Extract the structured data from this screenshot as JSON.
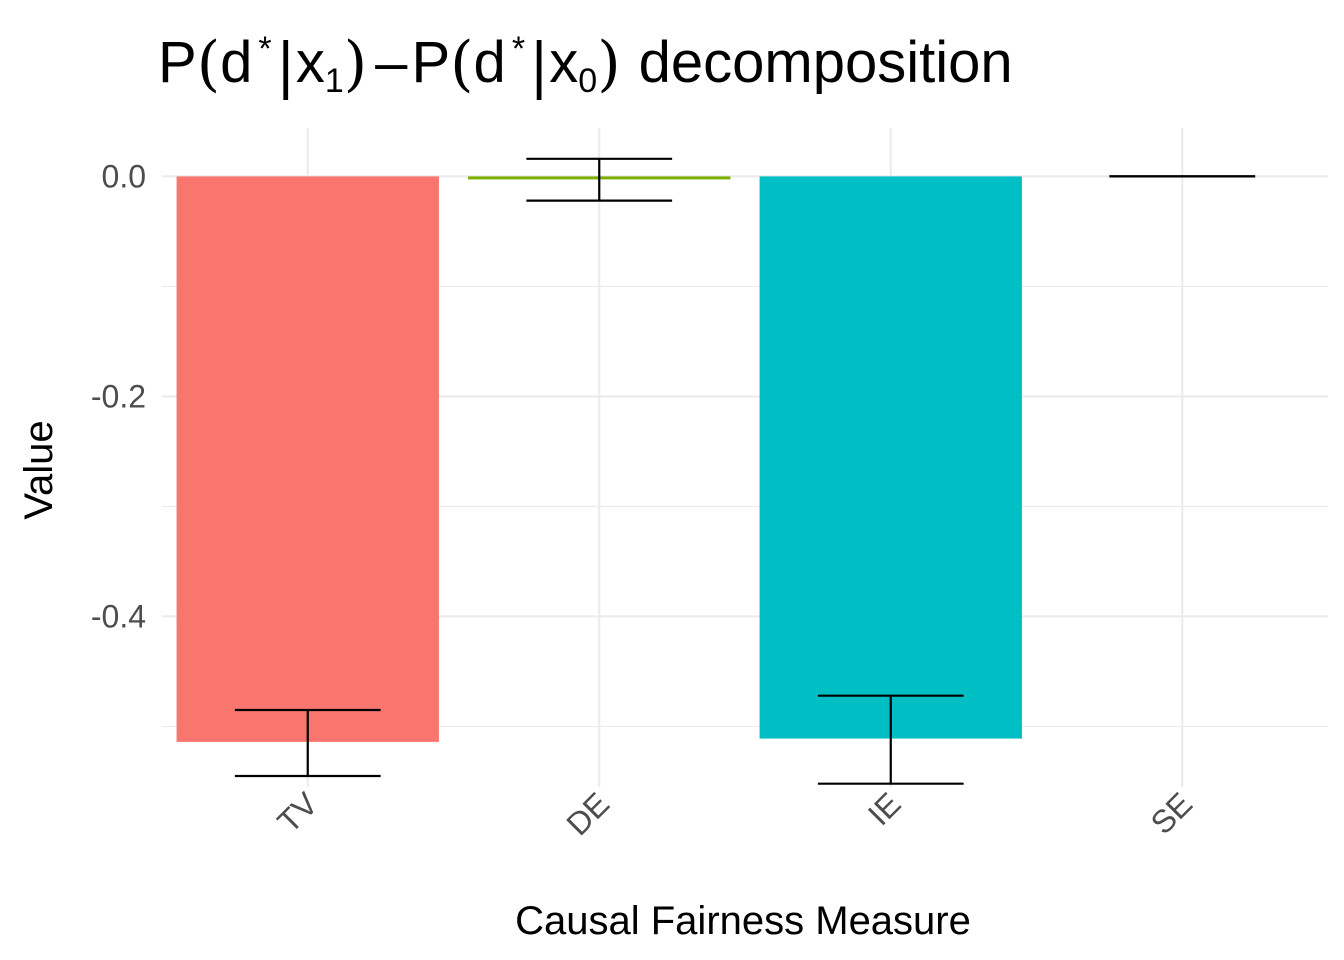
{
  "chart_data": {
    "type": "bar",
    "title_parts": {
      "p1": "P",
      "open1": "(",
      "d1": "d",
      "star1": "*",
      "bar1": "|",
      "x1": "x",
      "sub1": "1",
      "close1": ")",
      "minus": "–",
      "p2": "P",
      "open2": "(",
      "d2": "d",
      "star2": "*",
      "bar2": "|",
      "x2": "x",
      "sub2": "0",
      "close2": ")",
      "rest": "decomposition"
    },
    "xlabel": "Causal Fairness Measure",
    "ylabel": "Value",
    "categories": [
      "TV",
      "DE",
      "IE",
      "SE"
    ],
    "values": [
      -0.514,
      -0.002,
      -0.511,
      0.0
    ],
    "error_low": [
      -0.545,
      -0.022,
      -0.552,
      0.0
    ],
    "error_high": [
      -0.485,
      0.016,
      -0.472,
      0.0
    ],
    "colors": [
      "#F8766D",
      "#7CAE00",
      "#00BFC4",
      "#C77CFF"
    ],
    "ylim": [
      -0.555,
      0.044
    ],
    "yticks": [
      0.0,
      -0.2,
      -0.4
    ],
    "ytick_labels": [
      "0.0",
      "-0.2",
      "-0.4"
    ],
    "yminor": [
      -0.1,
      -0.3,
      -0.5
    ],
    "grid": true,
    "legend": "none"
  }
}
